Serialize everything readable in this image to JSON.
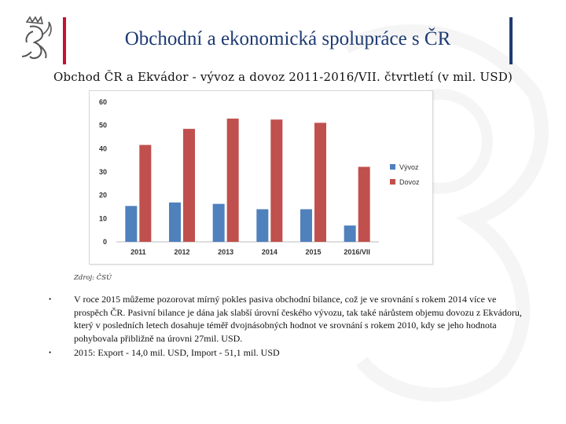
{
  "header": {
    "title": "Obchodní a ekonomická spolupráce s ČR",
    "subtitle": "Obchod ČR a Ekvádor - vývoz a dovoz 2011-2016/VII. čtvrtletí (v mil. USD)",
    "accent_left": "#c8102e",
    "accent_right": "#1f3b73"
  },
  "chart_data": {
    "type": "bar",
    "categories": [
      "2011",
      "2012",
      "2013",
      "2014",
      "2015",
      "2016/VII"
    ],
    "series": [
      {
        "name": "Vývoz",
        "color": "#4f81bd",
        "values": [
          15.4,
          16.9,
          16.3,
          14.0,
          14.0,
          7.0
        ]
      },
      {
        "name": "Dovoz",
        "color": "#c0504d",
        "values": [
          41.6,
          48.5,
          52.9,
          52.5,
          51.1,
          32.2
        ]
      }
    ],
    "ylim": [
      0,
      60
    ],
    "yticks": [
      0,
      10,
      20,
      30,
      40,
      50,
      60
    ],
    "grid": false,
    "legend": "right"
  },
  "source": "Zdroj: ČSÚ",
  "bullets": [
    "V roce 2015 můžeme pozorovat mírný pokles pasiva obchodní bilance, což je ve srovnání s rokem 2014 více ve prospěch ČR. Pasivní bilance je dána jak slabší úrovní českého vývozu, tak také nárůstem objemu dovozu z Ekvádoru, který v posledních letech dosahuje téměř dvojnásobných hodnot ve srovnání s rokem 2010, kdy se jeho hodnota pohybovala přibližně na úrovni 27mil. USD.",
    "2015: Export - 14,0 mil. USD, Import - 51,1 mil. USD"
  ],
  "icons": {
    "logo": "czech-lion-icon",
    "bullet": "bullet-dot-icon"
  }
}
